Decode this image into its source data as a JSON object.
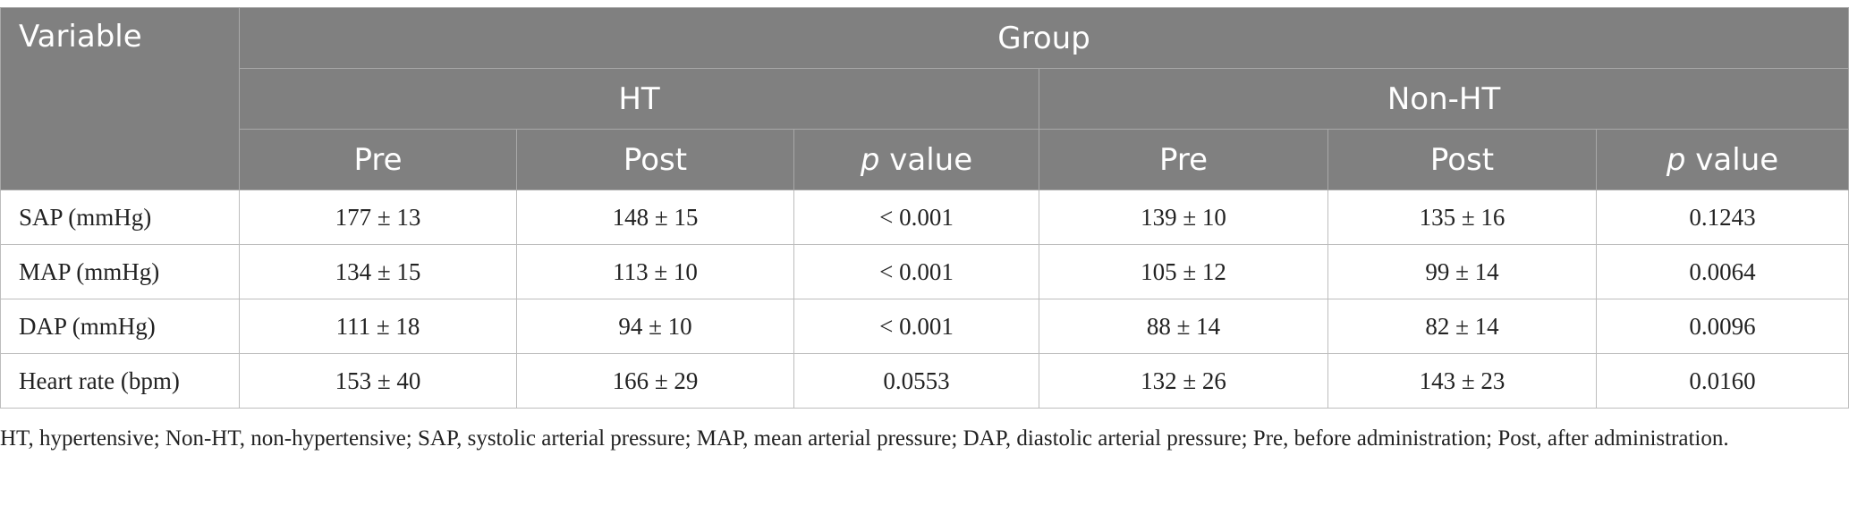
{
  "table": {
    "variable_header": "Variable",
    "group_header": "Group",
    "groups": [
      "HT",
      "Non-HT"
    ],
    "subheaders": {
      "pre": "Pre",
      "post": "Post",
      "p_italic": "p",
      "p_rest": " value"
    },
    "rows": [
      {
        "label": "SAP (mmHg)",
        "cells": [
          "177 ± 13",
          "148 ± 15",
          "< 0.001",
          "139 ± 10",
          "135 ± 16",
          "0.1243"
        ]
      },
      {
        "label": "MAP (mmHg)",
        "cells": [
          "134 ± 15",
          "113 ± 10",
          "< 0.001",
          "105 ± 12",
          "99 ± 14",
          "0.0064"
        ]
      },
      {
        "label": "DAP (mmHg)",
        "cells": [
          "111 ± 18",
          "94 ± 10",
          "< 0.001",
          "88 ± 14",
          "82 ± 14",
          "0.0096"
        ]
      },
      {
        "label": "Heart rate (bpm)",
        "cells": [
          "153 ± 40",
          "166 ± 29",
          "0.0553",
          "132 ± 26",
          "143 ± 23",
          "0.0160"
        ]
      }
    ]
  },
  "footnote": "HT, hypertensive; Non-HT, non-hypertensive; SAP, systolic arterial pressure; MAP, mean arterial pressure; DAP, diastolic arterial pressure; Pre, before administration; Post, after administration.",
  "colors": {
    "header_bg": "#808080",
    "header_text": "#ffffff",
    "grid_line": "#bdbdbd"
  }
}
